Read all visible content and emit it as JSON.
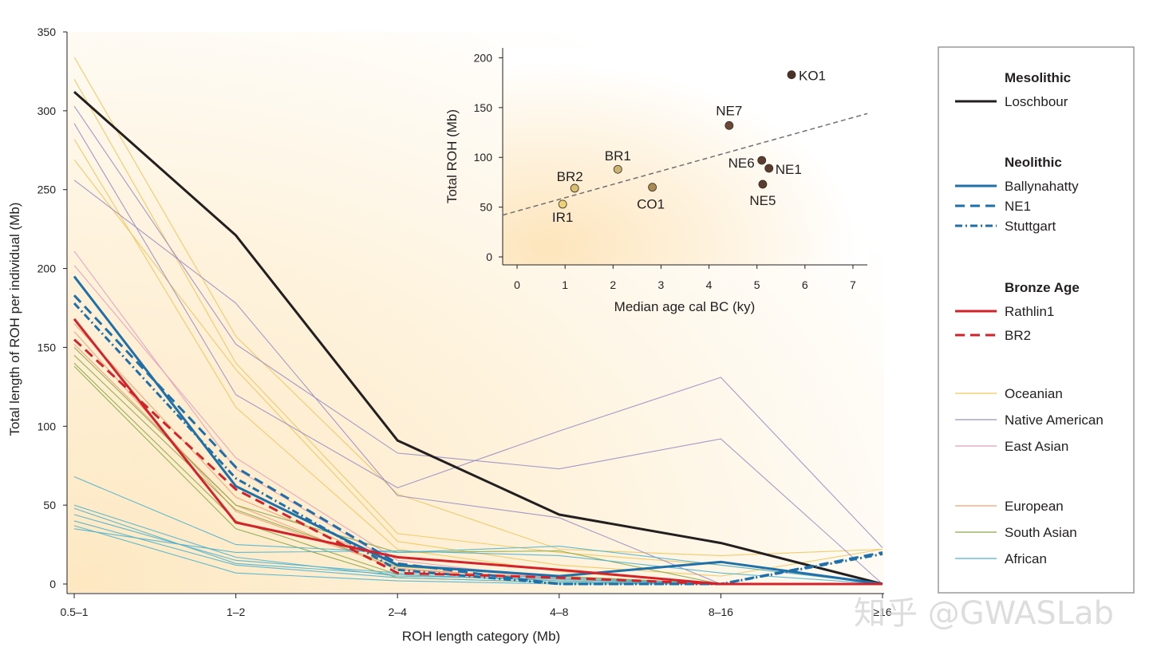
{
  "chart_data": [
    {
      "type": "line",
      "xlabel": "ROH length category (Mb)",
      "ylabel": "Total length of ROH per individual (Mb)",
      "categories": [
        "0.5–1",
        "1–2",
        "2–4",
        "4–8",
        "8–16",
        "≥16"
      ],
      "ylim": [
        0,
        350
      ],
      "yticks": [
        0,
        50,
        100,
        150,
        200,
        250,
        300,
        350
      ],
      "series": [
        {
          "name": "Loschbour",
          "group": "Mesolithic",
          "color": "#231f20",
          "dash": "solid",
          "width": 3,
          "values": [
            312,
            221,
            91,
            44,
            26,
            0
          ]
        },
        {
          "name": "Ballynahatty",
          "group": "Neolithic",
          "color": "#1f6fa8",
          "dash": "solid",
          "width": 3,
          "values": [
            195,
            62,
            12,
            5,
            14,
            0
          ]
        },
        {
          "name": "NE1",
          "group": "Neolithic",
          "color": "#1f6fa8",
          "dash": "dashed",
          "width": 3,
          "values": [
            183,
            74,
            13,
            0,
            0,
            20
          ]
        },
        {
          "name": "Stuttgart",
          "group": "Neolithic",
          "color": "#1f6fa8",
          "dash": "dotdash",
          "width": 3,
          "values": [
            178,
            67,
            9,
            0,
            0,
            19
          ]
        },
        {
          "name": "Rathlin1",
          "group": "Bronze Age",
          "color": "#d2232a",
          "dash": "solid",
          "width": 3,
          "values": [
            168,
            39,
            17,
            9,
            0,
            0
          ]
        },
        {
          "name": "BR2",
          "group": "Bronze Age",
          "color": "#d2232a",
          "dash": "dashed",
          "width": 3,
          "values": [
            155,
            60,
            7,
            4,
            0,
            0
          ]
        }
      ],
      "background_groups": [
        {
          "name": "Oceanian",
          "color": "#f0c75e",
          "values": [
            [
              334,
              157,
              57,
              22,
              18,
              22
            ],
            [
              320,
              140,
              32,
              20,
              12,
              0
            ],
            [
              282,
              112,
              22,
              8,
              0,
              0
            ],
            [
              269,
              136,
              27,
              12,
              5,
              22
            ]
          ]
        },
        {
          "name": "Native American",
          "color": "#9a8fc4",
          "values": [
            [
              303,
              152,
              83,
              73,
              92,
              0
            ],
            [
              292,
              120,
              61,
              97,
              131,
              23
            ],
            [
              256,
              178,
              56,
              42,
              0,
              0
            ]
          ]
        },
        {
          "name": "East Asian",
          "color": "#e2a0bc",
          "values": [
            [
              211,
              73,
              12,
              4,
              0,
              0
            ],
            [
              202,
              80,
              15,
              3,
              0,
              0
            ]
          ]
        },
        {
          "name": "European",
          "color": "#f0a070",
          "values": [
            [
              165,
              55,
              12,
              5,
              0,
              0
            ],
            [
              160,
              46,
              10,
              3,
              0,
              0
            ],
            [
              152,
              50,
              9,
              4,
              0,
              0
            ]
          ]
        },
        {
          "name": "South Asian",
          "color": "#8aa84a",
          "values": [
            [
              150,
              50,
              20,
              21,
              0,
              0
            ],
            [
              145,
              47,
              11,
              5,
              0,
              0
            ],
            [
              140,
              40,
              6,
              2,
              0,
              0
            ],
            [
              138,
              35,
              4,
              1,
              0,
              0
            ]
          ]
        },
        {
          "name": "African",
          "color": "#4fb3cf",
          "values": [
            [
              68,
              25,
              20,
              24,
              12,
              0
            ],
            [
              50,
              17,
              5,
              3,
              0,
              0
            ],
            [
              48,
              13,
              6,
              2,
              0,
              0
            ],
            [
              44,
              15,
              7,
              4,
              0,
              0
            ],
            [
              40,
              12,
              4,
              1,
              0,
              0
            ],
            [
              37,
              7,
              2,
              0,
              0,
              0
            ],
            [
              35,
              20,
              21,
              18,
              7,
              0
            ]
          ]
        }
      ]
    },
    {
      "type": "scatter",
      "xlabel": "Median age cal BC (ky)",
      "ylabel": "Total ROH (Mb)",
      "xlim": [
        -0.3,
        7.3
      ],
      "ylim": [
        -8,
        210
      ],
      "xticks": [
        0,
        1,
        2,
        3,
        4,
        5,
        6,
        7
      ],
      "yticks": [
        0,
        50,
        100,
        150,
        200
      ],
      "trendline": {
        "style": "dashed",
        "color": "#707070",
        "points": [
          [
            -0.3,
            42
          ],
          [
            7.3,
            144
          ]
        ]
      },
      "points": [
        {
          "label": "IR1",
          "x": 0.95,
          "y": 53,
          "color": "#ecd27a"
        },
        {
          "label": "BR2",
          "x": 1.2,
          "y": 69,
          "color": "#d8be70"
        },
        {
          "label": "BR1",
          "x": 2.1,
          "y": 88,
          "color": "#cdb372"
        },
        {
          "label": "CO1",
          "x": 2.82,
          "y": 70,
          "color": "#a88a52"
        },
        {
          "label": "NE7",
          "x": 4.42,
          "y": 132,
          "color": "#6b4a35"
        },
        {
          "label": "NE6",
          "x": 5.1,
          "y": 97,
          "color": "#5a3d2e"
        },
        {
          "label": "NE1",
          "x": 5.25,
          "y": 89,
          "color": "#5a3d2e"
        },
        {
          "label": "NE5",
          "x": 5.12,
          "y": 73,
          "color": "#5a3d2e"
        },
        {
          "label": "KO1",
          "x": 5.72,
          "y": 183,
          "color": "#4a3228"
        }
      ]
    }
  ],
  "legend": {
    "sections": [
      {
        "heading": "Mesolithic",
        "items": [
          {
            "label": "Loschbour",
            "color": "#231f20",
            "dash": "solid",
            "width": 3
          }
        ]
      },
      {
        "heading": "Neolithic",
        "items": [
          {
            "label": "Ballynahatty",
            "color": "#1f6fa8",
            "dash": "solid",
            "width": 3
          },
          {
            "label": "NE1",
            "color": "#1f6fa8",
            "dash": "dashed",
            "width": 3
          },
          {
            "label": "Stuttgart",
            "color": "#1f6fa8",
            "dash": "dotdash",
            "width": 3
          }
        ]
      },
      {
        "heading": "Bronze Age",
        "items": [
          {
            "label": "Rathlin1",
            "color": "#d2232a",
            "dash": "solid",
            "width": 3
          },
          {
            "label": "BR2",
            "color": "#d2232a",
            "dash": "dashed",
            "width": 3
          }
        ]
      },
      {
        "heading": "",
        "items": [
          {
            "label": "Oceanian",
            "color": "#f0c75e",
            "dash": "solid",
            "width": 1.2
          },
          {
            "label": "Native American",
            "color": "#9a8fc4",
            "dash": "solid",
            "width": 1.2
          },
          {
            "label": "East Asian",
            "color": "#e2a0bc",
            "dash": "solid",
            "width": 1.2
          }
        ]
      },
      {
        "heading": "",
        "items": [
          {
            "label": "European",
            "color": "#f0a070",
            "dash": "solid",
            "width": 1.2
          },
          {
            "label": "South Asian",
            "color": "#8aa84a",
            "dash": "solid",
            "width": 1.2
          },
          {
            "label": "African",
            "color": "#4fb3cf",
            "dash": "solid",
            "width": 1.2
          }
        ]
      }
    ]
  },
  "watermark": "知乎 @GWASLab"
}
